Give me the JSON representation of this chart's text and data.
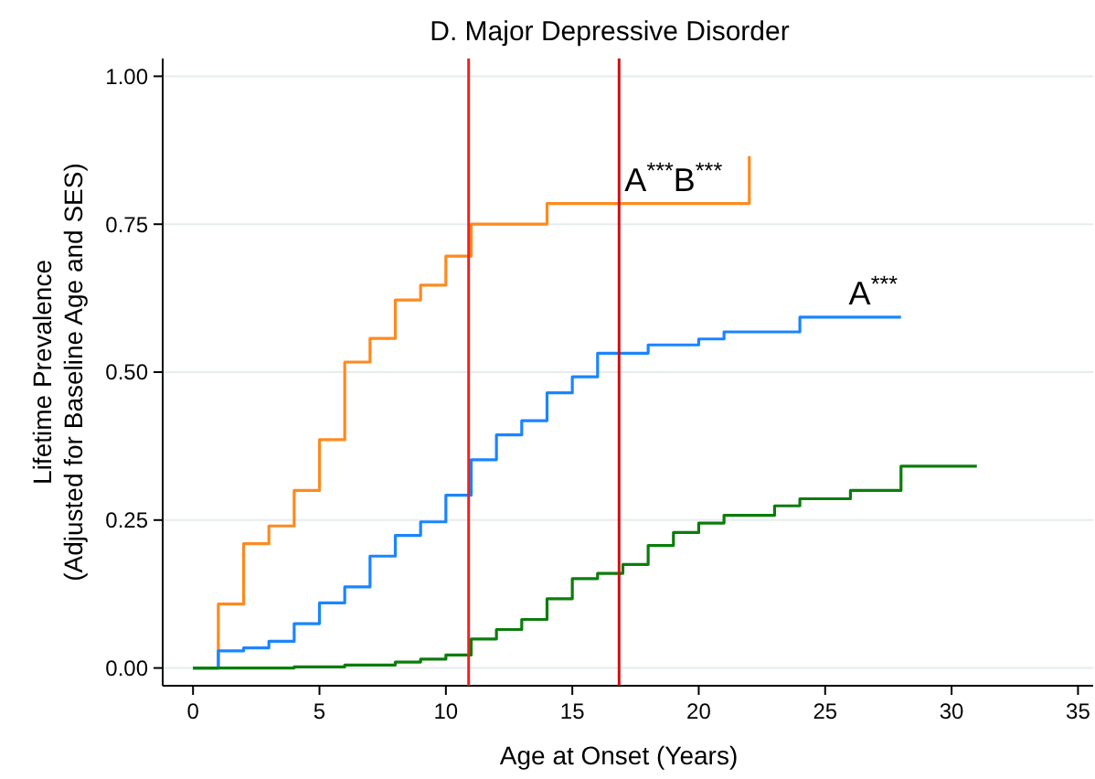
{
  "chart_data": {
    "type": "step",
    "title": "D. Major Depressive Disorder",
    "xlabel": "Age at Onset (Years)",
    "ylabel": "Lifetime Prevalence\n(Adjusted for Baseline Age and SES)",
    "xlim": [
      -1.2,
      35.6
    ],
    "xticks": [
      0,
      5,
      10,
      15,
      20,
      25,
      30,
      35
    ],
    "ylim": [
      -0.03,
      1.03
    ],
    "yticks": [
      {
        "value": 0,
        "label": "0.00"
      },
      {
        "value": 0.25,
        "label": "0.25"
      },
      {
        "value": 0.5,
        "label": "0.50"
      },
      {
        "value": 0.75,
        "label": "0.75"
      },
      {
        "value": 1,
        "label": "1.00"
      }
    ],
    "grid": "y",
    "series": [
      {
        "color": "#fd8a1f",
        "x": [
          0,
          1,
          2,
          3,
          4,
          5,
          6,
          7,
          8,
          9,
          10,
          11,
          14,
          22
        ],
        "values": [
          0,
          0.108,
          0.21,
          0.24,
          0.3,
          0.386,
          0.517,
          0.557,
          0.622,
          0.647,
          0.696,
          0.75,
          0.785,
          0.865
        ]
      },
      {
        "color": "#1a85ff",
        "x": [
          0,
          1,
          2,
          3,
          4,
          5,
          6,
          7,
          8,
          9,
          10,
          11,
          12,
          13,
          14,
          15,
          16,
          18,
          20,
          21,
          24,
          28
        ],
        "values": [
          0,
          0.029,
          0.034,
          0.045,
          0.075,
          0.11,
          0.137,
          0.189,
          0.224,
          0.247,
          0.292,
          0.352,
          0.394,
          0.418,
          0.465,
          0.492,
          0.532,
          0.546,
          0.556,
          0.568,
          0.593,
          0.593
        ]
      },
      {
        "color": "#0b7d0b",
        "x": [
          0,
          4,
          6,
          8,
          9,
          10,
          11,
          12,
          13,
          14,
          15,
          16,
          17,
          18,
          19,
          20,
          21,
          23,
          24,
          26,
          28,
          31
        ],
        "values": [
          0,
          0.002,
          0.005,
          0.01,
          0.015,
          0.022,
          0.049,
          0.065,
          0.082,
          0.117,
          0.151,
          0.16,
          0.175,
          0.207,
          0.229,
          0.245,
          0.258,
          0.274,
          0.286,
          0.3,
          0.341,
          0.341
        ]
      }
    ],
    "ref_lines": [
      {
        "axis": "x",
        "value": 10.9,
        "color": "#ee2222"
      },
      {
        "axis": "x",
        "value": 16.85,
        "color": "#cc1111"
      }
    ],
    "annotations": [
      {
        "text": "A$^{***}$B$^{***}$",
        "x": 19,
        "y": 0.785
      },
      {
        "text": "A$^{***}$",
        "x": 26.9,
        "y": 0.593
      }
    ]
  }
}
